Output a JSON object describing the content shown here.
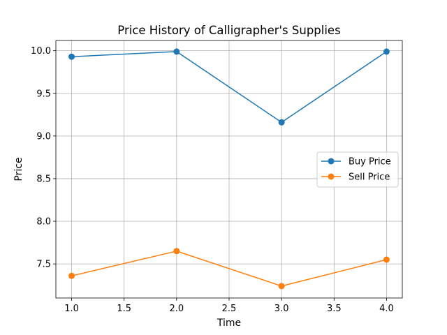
{
  "chart_data": {
    "type": "line",
    "title": "Price History of Calligrapher's Supplies",
    "xlabel": "Time",
    "ylabel": "Price",
    "x": [
      1.0,
      2.0,
      3.0,
      4.0
    ],
    "series": [
      {
        "name": "Buy Price",
        "values": [
          9.93,
          9.99,
          9.16,
          9.99
        ],
        "color": "#1f77b4",
        "marker": "circle"
      },
      {
        "name": "Sell Price",
        "values": [
          7.36,
          7.65,
          7.24,
          7.55
        ],
        "color": "#ff7f0e",
        "marker": "circle"
      }
    ],
    "xlim": [
      0.85,
      4.15
    ],
    "ylim": [
      7.1,
      10.12
    ],
    "xticks": [
      1.0,
      1.5,
      2.0,
      2.5,
      3.0,
      3.5,
      4.0
    ],
    "xtick_labels": [
      "1.0",
      "1.5",
      "2.0",
      "2.5",
      "3.0",
      "3.5",
      "4.0"
    ],
    "yticks": [
      7.5,
      8.0,
      8.5,
      9.0,
      9.5,
      10.0
    ],
    "ytick_labels": [
      "7.5",
      "8.0",
      "8.5",
      "9.0",
      "9.5",
      "10.0"
    ],
    "grid": true,
    "legend_position": "center-right"
  }
}
